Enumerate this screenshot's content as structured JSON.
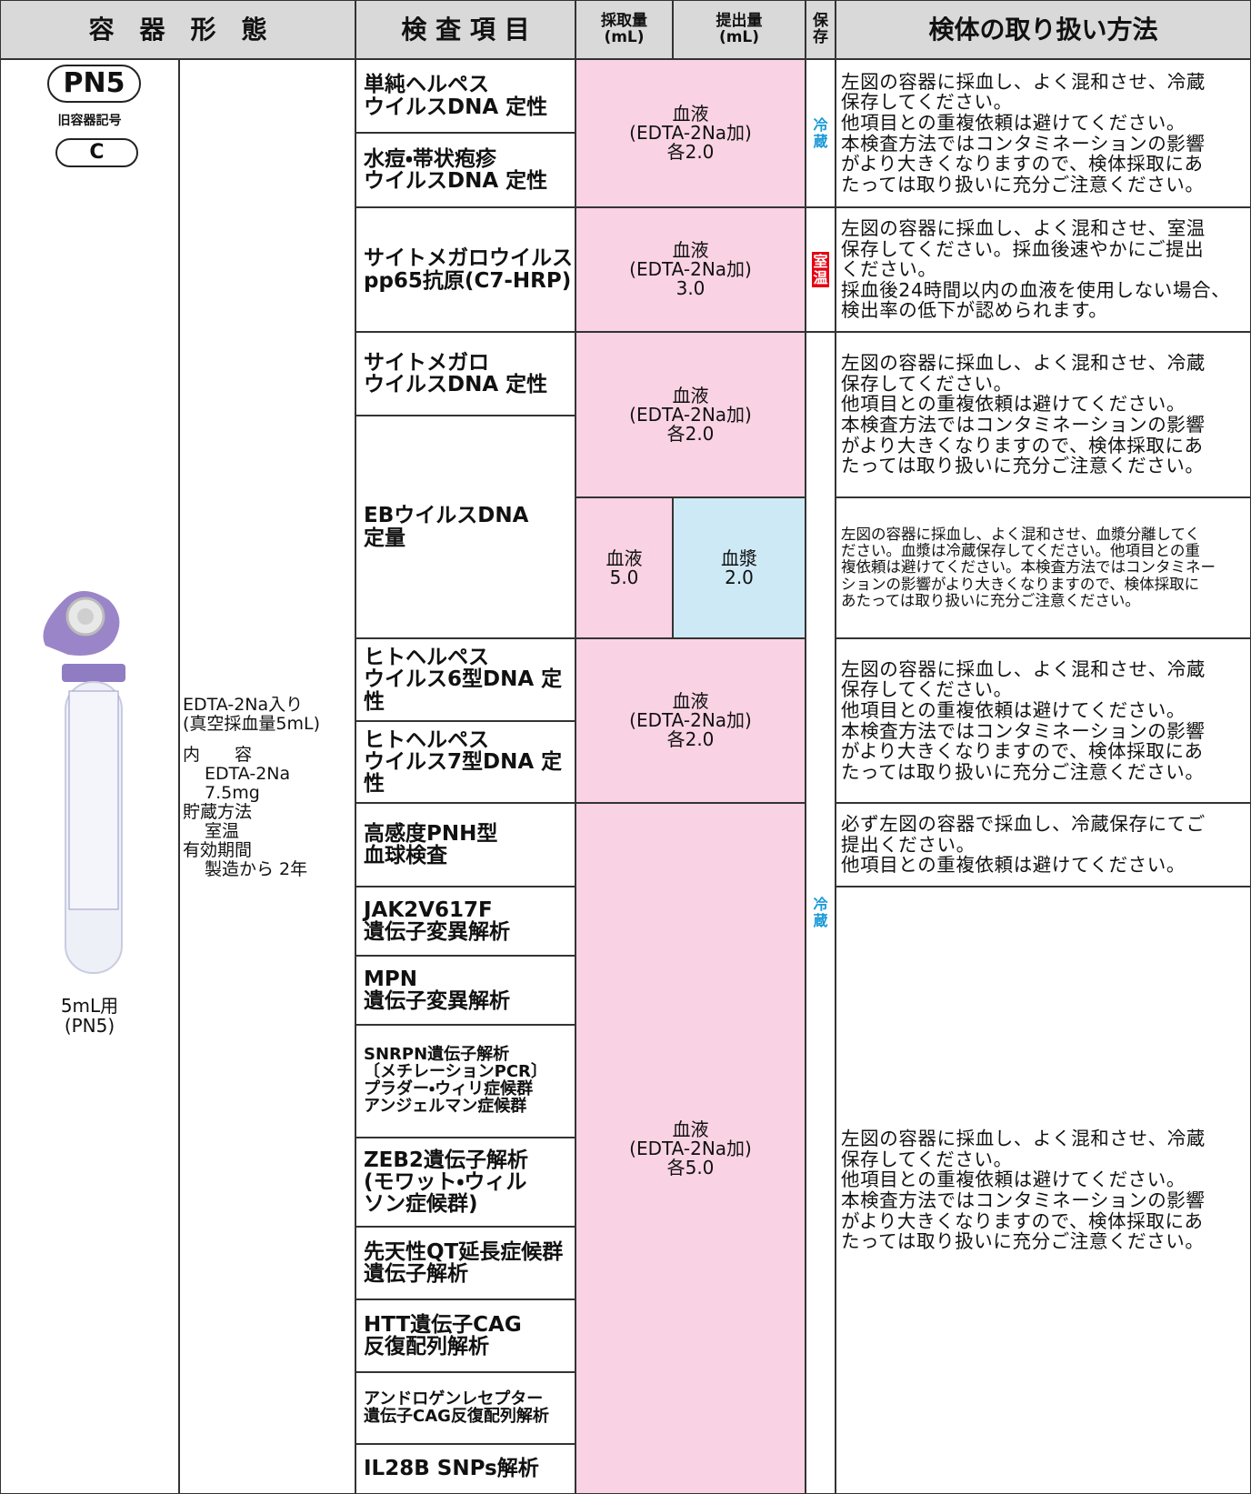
{
  "header": {
    "container_form": "容　器　形　態",
    "test_item": "検 査 項 目",
    "collection_volume": "採取量\n(mL)",
    "submission_volume": "提出量\n(mL)",
    "storage": "保\n存",
    "handling": "検体の取り扱い方法"
  },
  "container": {
    "code": "PN5",
    "old_code_label": "旧容器記号",
    "old_code": "C",
    "caption": "5mL用\n(PN5)",
    "description": "EDTA-2Na入り\n(真空採血量5mL)",
    "contents_label": "内　　容",
    "contents": "EDTA-2Na\n7.5mg",
    "storage_label": "貯蔵方法",
    "storage": "室温",
    "expiry_label": "有効期間",
    "expiry": "製造から 2年"
  },
  "tests": [
    "単純ヘルペス\nウイルスDNA 定性",
    "水痘・帯状疱疹\nウイルスDNA 定性",
    "サイトメガロウイルス\npp65抗原(C7-HRP)",
    "サイトメガロ\nウイルスDNA 定性",
    "EBウイルスDNA\n定量",
    "ヒトヘルペス\nウイルス6型DNA 定性",
    "ヒトヘルペス\nウイルス7型DNA 定性",
    "高感度PNH型\n血球検査",
    "JAK2V617F\n遺伝子変異解析",
    "MPN\n遺伝子変異解析",
    "SNRPN遺伝子解析\n〔メチレーションPCR〕\nプラダー・ウィリ症候群\nアンジェルマン症候群",
    "ZEB2遺伝子解析\n(モワット・ウィル\nソン症候群)",
    "先天性QT延長症候群\n遺伝子解析",
    "HTT遺伝子CAG\n反復配列解析",
    "アンドロゲンレセプター\n遺伝子CAG反復配列解析",
    "IL28B SNPs解析"
  ],
  "specimens": [
    "血液\n(EDTA-2Na加)\n各2.0",
    "血液\n(EDTA-2Na加)\n3.0",
    "血液\n(EDTA-2Na加)\n各2.0",
    "血液\n(EDTA-2Na加)\n各2.0",
    "血液\n(EDTA-2Na加)\n各5.0"
  ],
  "eb_specimen": {
    "collection": "血液\n5.0",
    "submission": "血漿\n2.0"
  },
  "storage": [
    "冷\n蔵",
    "室\n温",
    "冷\n蔵"
  ],
  "handling": [
    "左図の容器に採血し、よく混和させ、冷蔵\n保存してください。\n他項目との重複依頼は避けてください。\n本検査方法ではコンタミネーションの影響\nがより大きくなりますので、検体採取にあ\nたっては取り扱いに充分ご注意ください。",
    "左図の容器に採血し、よく混和させ、室温\n保存してください。採血後速やかにご提出\nください。\n採血後24時間以内の血液を使用しない場合、\n検出率の低下が認められます。",
    "左図の容器に採血し、よく混和させ、冷蔵\n保存してください。\n他項目との重複依頼は避けてください。\n本検査方法ではコンタミネーションの影響\nがより大きくなりますので、検体採取にあ\nたっては取り扱いに充分ご注意ください。",
    "左図の容器に採血し、よく混和させ、血漿分離してく\nださい。血漿は冷蔵保存してください。他項目との重\n複依頼は避けてください。本検査方法ではコンタミネー\nションの影響がより大きくなりますので、検体採取に\nあたっては取り扱いに充分ご注意ください。",
    "左図の容器に採血し、よく混和させ、冷蔵\n保存してください。\n他項目との重複依頼は避けてください。\n本検査方法ではコンタミネーションの影響\nがより大きくなりますので、検体採取にあ\nたっては取り扱いに充分ご注意ください。",
    "必ず左図の容器で採血し、冷蔵保存にてご\n提出ください。\n他項目との重複依頼は避けてください。",
    "左図の容器に採血し、よく混和させ、冷蔵\n保存してください。\n他項目との重複依頼は避けてください。\n本検査方法ではコンタミネーションの影響\nがより大きくなりますので、検体採取にあ\nたっては取り扱いに充分ご注意ください。"
  ]
}
